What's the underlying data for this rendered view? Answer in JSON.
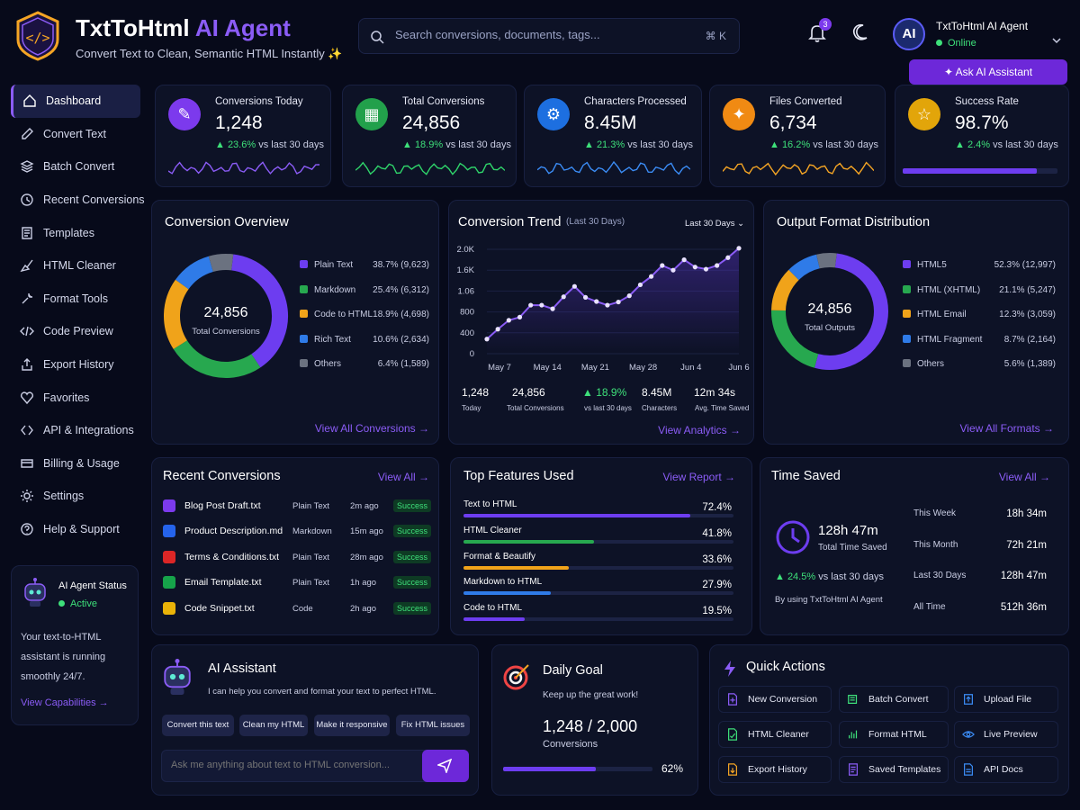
{
  "header": {
    "brand_main": "TxtToHtml",
    "brand_ai": "AI Agent",
    "tagline": "Convert Text to Clean, Semantic HTML Instantly ✨",
    "search_placeholder": "Search conversions, documents, tags...",
    "search_shortcut": "⌘ K",
    "notification_count": "3",
    "avatar_initials": "AI",
    "user_name": "TxtToHtml AI Agent",
    "user_status": "Online",
    "ask_button": "Ask AI Assistant"
  },
  "sidebar": {
    "items": [
      {
        "label": "Dashboard",
        "icon": "home-icon"
      },
      {
        "label": "Convert Text",
        "icon": "edit-icon"
      },
      {
        "label": "Batch Convert",
        "icon": "layers-icon"
      },
      {
        "label": "Recent Conversions",
        "icon": "clock-icon"
      },
      {
        "label": "Templates",
        "icon": "template-icon"
      },
      {
        "label": "HTML Cleaner",
        "icon": "broom-icon"
      },
      {
        "label": "Format Tools",
        "icon": "tools-icon"
      },
      {
        "label": "Code Preview",
        "icon": "code-icon"
      },
      {
        "label": "Export History",
        "icon": "export-icon"
      },
      {
        "label": "Favorites",
        "icon": "heart-icon"
      },
      {
        "label": "API & Integrations",
        "icon": "api-icon"
      },
      {
        "label": "Billing & Usage",
        "icon": "billing-icon"
      },
      {
        "label": "Settings",
        "icon": "gear-icon"
      },
      {
        "label": "Help & Support",
        "icon": "help-icon"
      }
    ],
    "agent_status": {
      "title": "AI Agent Status",
      "state": "Active",
      "line1": "Your text-to-HTML",
      "line2": "assistant is running",
      "line3": "smoothly 24/7.",
      "link": "View Capabilities →"
    }
  },
  "stats": [
    {
      "label": "Conversions Today",
      "value": "1,248",
      "change": "▲ 23.6%",
      "suffix": "vs last 30 days",
      "color": "#7c3aed",
      "spark": "#8b5cf6"
    },
    {
      "label": "Total Conversions",
      "value": "24,856",
      "change": "▲ 18.9%",
      "suffix": "vs last 30 days",
      "color": "#22a04b",
      "spark": "#2fd46a"
    },
    {
      "label": "Characters Processed",
      "value": "8.45M",
      "change": "▲ 21.3%",
      "suffix": "vs last 30 days",
      "color": "#1d6fe0",
      "spark": "#3b8cf5"
    },
    {
      "label": "Files Converted",
      "value": "6,734",
      "change": "▲ 16.2%",
      "suffix": "vs last 30 days",
      "color": "#f08a13",
      "spark": "#f5a524"
    },
    {
      "label": "Success Rate",
      "value": "98.7%",
      "change": "▲ 2.4%",
      "suffix": "vs last 30 days",
      "color": "#e2a50a",
      "progress": 0.987
    }
  ],
  "overview": {
    "title": "Conversion Overview",
    "center_value": "24,856",
    "center_label": "Total Conversions",
    "legend": [
      {
        "label": "Plain Text",
        "pct": "38.7% (9,623)",
        "color": "#6d3df0",
        "share": 38.7
      },
      {
        "label": "Markdown",
        "pct": "25.4% (6,312)",
        "color": "#27a84f",
        "share": 25.4
      },
      {
        "label": "Code to HTML",
        "pct": "18.9% (4,698)",
        "color": "#f0a31a",
        "share": 18.9
      },
      {
        "label": "Rich Text",
        "pct": "10.6% (2,634)",
        "color": "#2f7be8",
        "share": 10.6
      },
      {
        "label": "Others",
        "pct": "6.4% (1,589)",
        "color": "#6b7280",
        "share": 6.4
      }
    ],
    "link": "View All Conversions →"
  },
  "trend": {
    "title": "Conversion Trend",
    "subtitle": "(Last 30 Days)",
    "range_select": "Last 30 Days",
    "stats": [
      {
        "value": "1,248",
        "label": "Today"
      },
      {
        "value": "24,856",
        "label": "Total Conversions"
      },
      {
        "value": "▲ 18.9%",
        "label": "vs last 30 days"
      },
      {
        "value": "8.45M",
        "label": "Characters"
      },
      {
        "value": "12m 34s",
        "label": "Avg. Time Saved"
      }
    ],
    "link": "View Analytics →"
  },
  "chart_data": {
    "type": "line",
    "x_ticks": [
      "May 7",
      "May 14",
      "May 21",
      "May 28",
      "Jun 4",
      "Jun 6"
    ],
    "y_ticks": [
      "2.0K",
      "1.6K",
      "1.06",
      "800",
      "400",
      "0"
    ],
    "ylim": [
      0,
      2000
    ],
    "values": [
      280,
      470,
      640,
      700,
      930,
      930,
      860,
      1090,
      1290,
      1080,
      1000,
      930,
      990,
      1110,
      1320,
      1480,
      1690,
      1600,
      1800,
      1660,
      1620,
      1690,
      1840,
      2020
    ],
    "color": "#8b5cf6"
  },
  "distribution": {
    "title": "Output Format Distribution",
    "center_value": "24,856",
    "center_label": "Total Outputs",
    "legend": [
      {
        "label": "HTML5",
        "pct": "52.3% (12,997)",
        "color": "#6d3df0",
        "share": 52.3
      },
      {
        "label": "HTML (XHTML)",
        "pct": "21.1% (5,247)",
        "color": "#27a84f",
        "share": 21.1
      },
      {
        "label": "HTML Email",
        "pct": "12.3% (3,059)",
        "color": "#f0a31a",
        "share": 12.3
      },
      {
        "label": "HTML Fragment",
        "pct": "8.7% (2,164)",
        "color": "#2f7be8",
        "share": 8.7
      },
      {
        "label": "Others",
        "pct": "5.6% (1,389)",
        "color": "#6b7280",
        "share": 5.6
      }
    ],
    "link": "View All Formats →"
  },
  "recent": {
    "title": "Recent Conversions",
    "link": "View All →",
    "rows": [
      {
        "name": "Blog Post Draft.txt",
        "type": "Plain Text",
        "time": "2m ago",
        "status": "Success",
        "color": "#7c3aed"
      },
      {
        "name": "Product Description.md",
        "type": "Markdown",
        "time": "15m ago",
        "status": "Success",
        "color": "#2563eb"
      },
      {
        "name": "Terms & Conditions.txt",
        "type": "Plain Text",
        "time": "28m ago",
        "status": "Success",
        "color": "#dc2626"
      },
      {
        "name": "Email Template.txt",
        "type": "Plain Text",
        "time": "1h ago",
        "status": "Success",
        "color": "#16a34a"
      },
      {
        "name": "Code Snippet.txt",
        "type": "Code",
        "time": "2h ago",
        "status": "Success",
        "color": "#eab308"
      }
    ]
  },
  "features": {
    "title": "Top Features Used",
    "link": "View Report →",
    "items": [
      {
        "label": "Text to HTML",
        "pct": "72.4%",
        "value": 72.4,
        "color": "#6d3df0"
      },
      {
        "label": "HTML Cleaner",
        "pct": "41.8%",
        "value": 41.8,
        "color": "#27a84f"
      },
      {
        "label": "Format & Beautify",
        "pct": "33.6%",
        "value": 33.6,
        "color": "#f0a31a"
      },
      {
        "label": "Markdown to HTML",
        "pct": "27.9%",
        "value": 27.9,
        "color": "#2f7be8"
      },
      {
        "label": "Code to HTML",
        "pct": "19.5%",
        "value": 19.5,
        "color": "#6d3df0"
      }
    ]
  },
  "time_saved": {
    "title": "Time Saved",
    "link": "View All →",
    "total": "128h 47m",
    "total_label": "Total Time Saved",
    "change": "▲ 24.5%",
    "change_suffix": "vs last 30 days",
    "note": "By using TxtToHtml AI Agent",
    "rows": [
      {
        "label": "This Week",
        "value": "18h 34m"
      },
      {
        "label": "This Month",
        "value": "72h 21m"
      },
      {
        "label": "Last 30 Days",
        "value": "128h 47m"
      },
      {
        "label": "All Time",
        "value": "512h 36m"
      }
    ]
  },
  "assistant": {
    "title": "AI Assistant",
    "subtitle": "I can help you convert and format your text to perfect HTML.",
    "chips": [
      "Convert this text",
      "Clean my HTML",
      "Make it responsive",
      "Fix HTML issues"
    ],
    "input_placeholder": "Ask me anything about text to HTML conversion..."
  },
  "goal": {
    "title": "Daily Goal",
    "subtitle": "Keep up the great work!",
    "value": "1,248 / 2,000",
    "unit": "Conversions",
    "pct": "62%",
    "progress": 0.62
  },
  "quick": {
    "title": "Quick Actions",
    "items": [
      {
        "label": "New Conversion",
        "icon": "file-plus-icon",
        "color": "#8b5cf6"
      },
      {
        "label": "Batch Convert",
        "icon": "batch-icon",
        "color": "#3ee07a"
      },
      {
        "label": "Upload File",
        "icon": "upload-icon",
        "color": "#3b8cf5"
      },
      {
        "label": "HTML Cleaner",
        "icon": "clean-icon",
        "color": "#3ee07a"
      },
      {
        "label": "Format HTML",
        "icon": "format-icon",
        "color": "#3ee07a"
      },
      {
        "label": "Live Preview",
        "icon": "eye-icon",
        "color": "#3b8cf5"
      },
      {
        "label": "Export History",
        "icon": "export-icon",
        "color": "#f5a524"
      },
      {
        "label": "Saved Templates",
        "icon": "template-icon",
        "color": "#8b5cf6"
      },
      {
        "label": "API Docs",
        "icon": "doc-icon",
        "color": "#3b8cf5"
      }
    ]
  }
}
